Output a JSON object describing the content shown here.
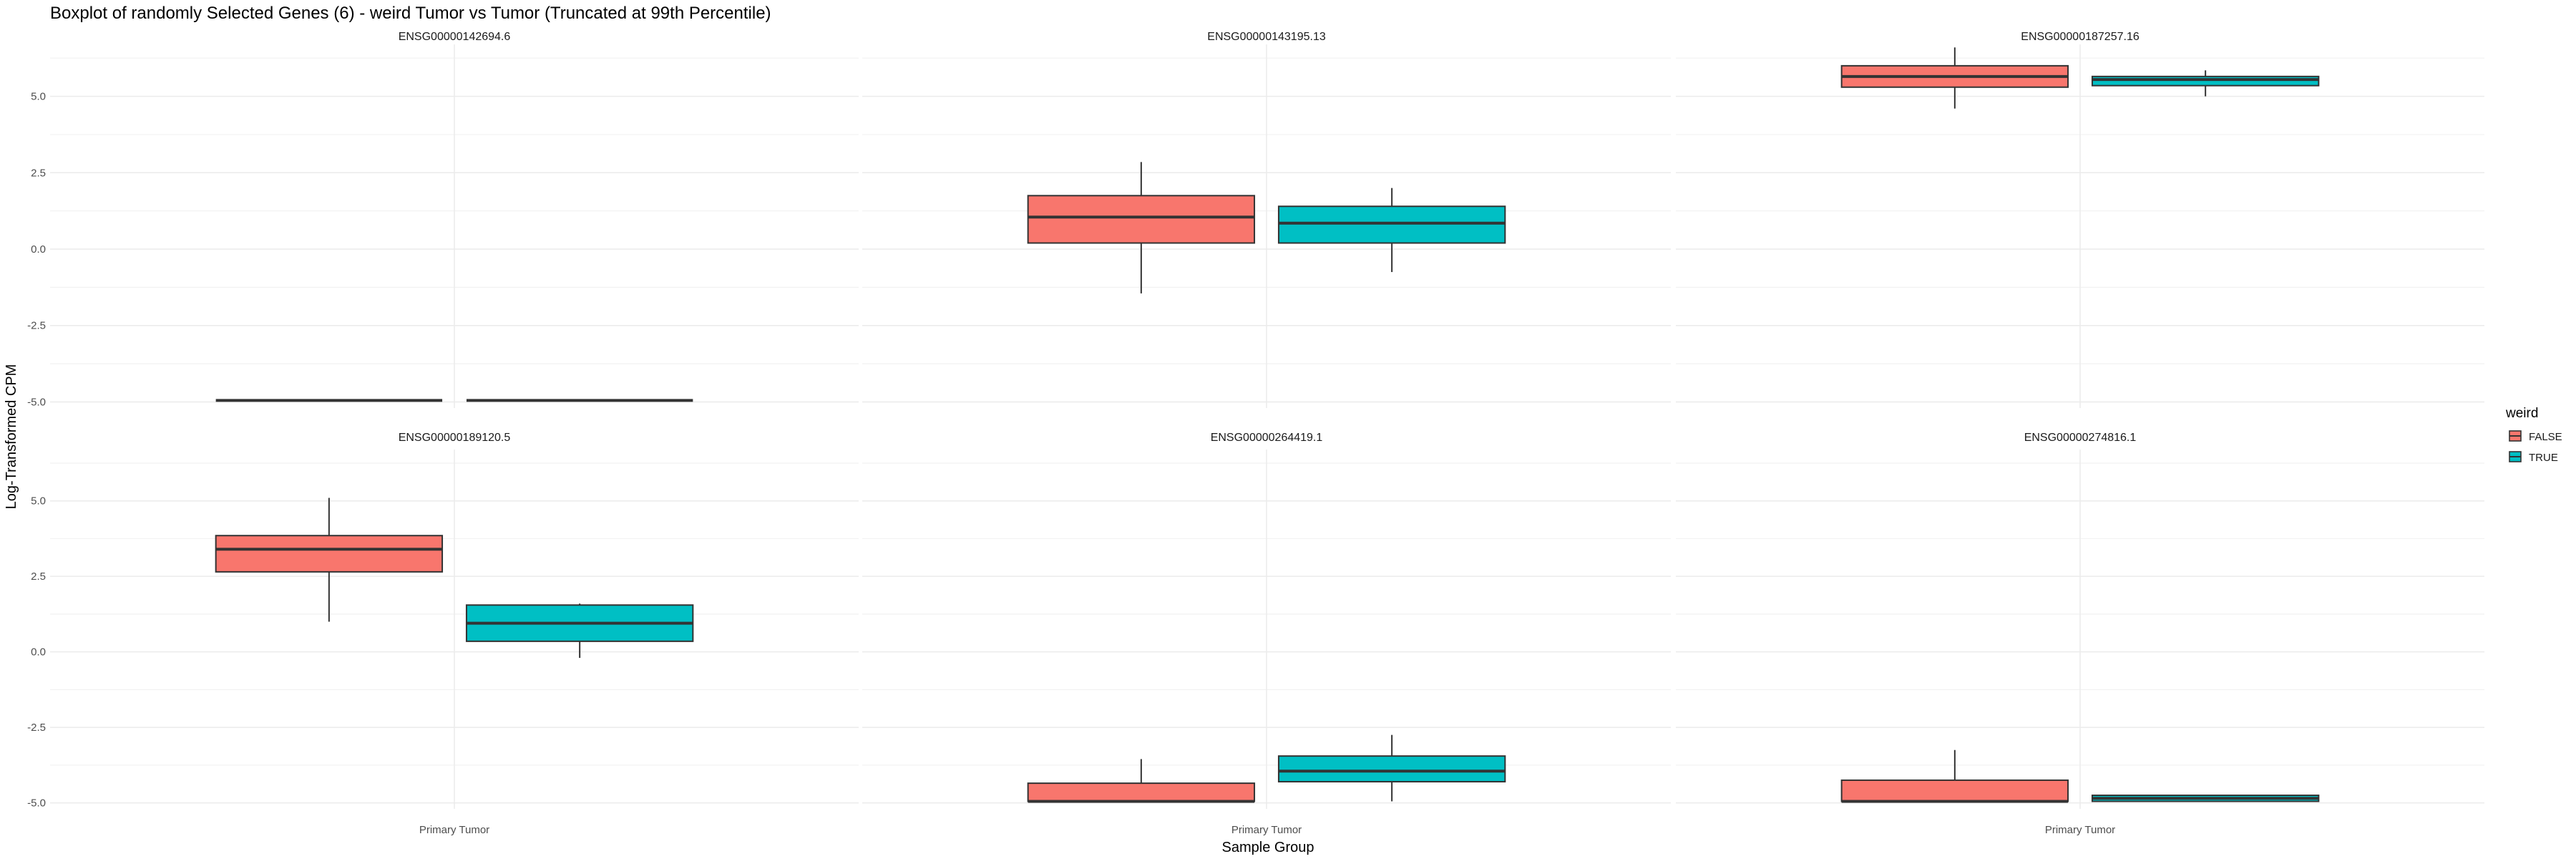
{
  "chart_data": {
    "type": "boxplot",
    "title": "Boxplot of randomly Selected Genes (6) - weird Tumor vs Tumor (Truncated at 99th Percentile)",
    "xlabel": "Sample Group",
    "ylabel": "Log-Transformed CPM",
    "categories": [
      "Primary Tumor"
    ],
    "y_ticks": [
      -5.0,
      -2.5,
      0.0,
      2.5,
      5.0
    ],
    "y_tick_labels": [
      "-5.0",
      "-2.5",
      "0.0",
      "2.5",
      "5.0"
    ],
    "ylim": [
      -5.2,
      6.7
    ],
    "grid": true,
    "legend": {
      "title": "weird",
      "position": "right",
      "entries": [
        {
          "label": "FALSE",
          "color": "#F8766D"
        },
        {
          "label": "TRUE",
          "color": "#00BFC4"
        }
      ]
    },
    "panels": [
      {
        "gene": "ENSG00000142694.6",
        "boxes": [
          {
            "group": "FALSE",
            "min": -4.95,
            "q1": -4.95,
            "median": -4.95,
            "q3": -4.95,
            "max": -4.95
          },
          {
            "group": "TRUE",
            "min": -4.95,
            "q1": -4.95,
            "median": -4.95,
            "q3": -4.95,
            "max": -4.95
          }
        ]
      },
      {
        "gene": "ENSG00000143195.13",
        "boxes": [
          {
            "group": "FALSE",
            "min": -1.45,
            "q1": 0.2,
            "median": 1.05,
            "q3": 1.75,
            "max": 2.85
          },
          {
            "group": "TRUE",
            "min": -0.75,
            "q1": 0.2,
            "median": 0.85,
            "q3": 1.4,
            "max": 2.0
          }
        ]
      },
      {
        "gene": "ENSG00000187257.16",
        "boxes": [
          {
            "group": "FALSE",
            "min": 4.6,
            "q1": 5.3,
            "median": 5.65,
            "q3": 6.0,
            "max": 6.6
          },
          {
            "group": "TRUE",
            "min": 5.0,
            "q1": 5.35,
            "median": 5.55,
            "q3": 5.65,
            "max": 5.85
          }
        ]
      },
      {
        "gene": "ENSG00000189120.5",
        "boxes": [
          {
            "group": "FALSE",
            "min": 1.0,
            "q1": 2.65,
            "median": 3.4,
            "q3": 3.85,
            "max": 5.1
          },
          {
            "group": "TRUE",
            "min": -0.2,
            "q1": 0.35,
            "median": 0.95,
            "q3": 1.55,
            "max": 1.6
          }
        ]
      },
      {
        "gene": "ENSG00000264419.1",
        "boxes": [
          {
            "group": "FALSE",
            "min": -4.95,
            "q1": -4.95,
            "median": -4.95,
            "q3": -4.35,
            "max": -3.55
          },
          {
            "group": "TRUE",
            "min": -4.95,
            "q1": -4.3,
            "median": -3.95,
            "q3": -3.45,
            "max": -2.75
          }
        ]
      },
      {
        "gene": "ENSG00000274816.1",
        "boxes": [
          {
            "group": "FALSE",
            "min": -4.95,
            "q1": -4.95,
            "median": -4.95,
            "q3": -4.25,
            "max": -3.25
          },
          {
            "group": "TRUE",
            "min": -4.95,
            "q1": -4.95,
            "median": -4.85,
            "q3": -4.75,
            "max": -4.75
          }
        ]
      }
    ]
  }
}
